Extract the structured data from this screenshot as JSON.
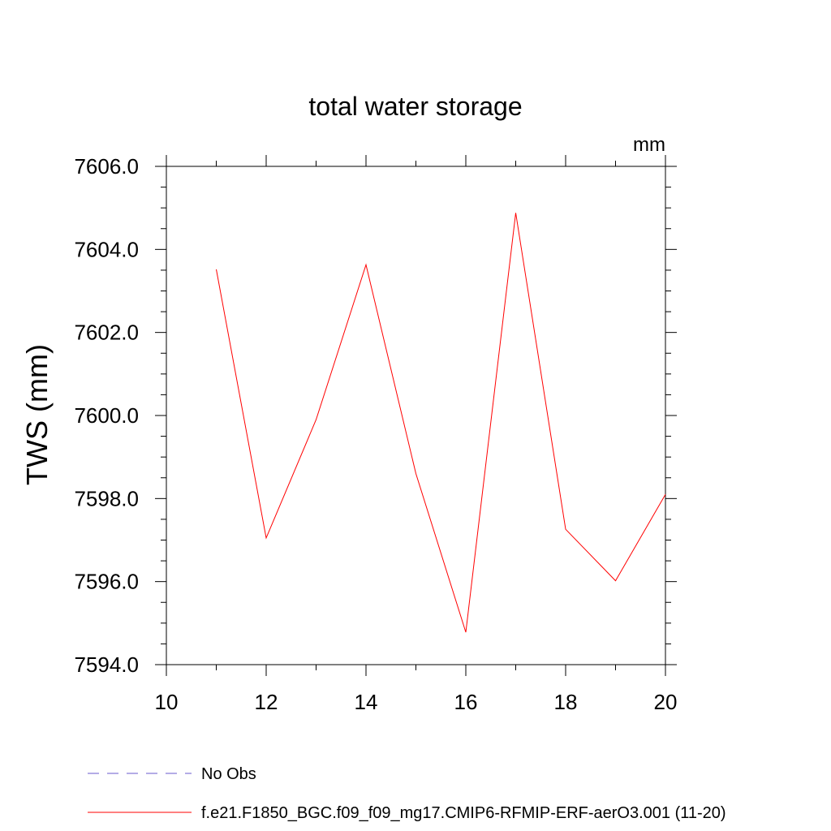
{
  "chart_data": {
    "type": "line",
    "title": "total water storage",
    "units_label": "mm",
    "xlabel": "",
    "ylabel": "TWS  (mm)",
    "xlim": [
      10,
      20
    ],
    "ylim": [
      7594.0,
      7606.0
    ],
    "x_ticks": [
      10,
      12,
      14,
      16,
      18,
      20
    ],
    "x_tick_labels": [
      "10",
      "12",
      "14",
      "16",
      "18",
      "20"
    ],
    "x_minor_ticks": [
      11,
      13,
      15,
      17,
      19
    ],
    "y_ticks": [
      7594.0,
      7596.0,
      7598.0,
      7600.0,
      7602.0,
      7604.0,
      7606.0
    ],
    "y_tick_labels": [
      "7594.0",
      "7596.0",
      "7598.0",
      "7600.0",
      "7602.0",
      "7604.0",
      "7606.0"
    ],
    "y_minor_step": 0.5,
    "grid": false,
    "series": [
      {
        "name": "f.e21.F1850_BGC.f09_f09_mg17.CMIP6-RFMIP-ERF-aerO3.001 (11-20)",
        "color": "#ff0000",
        "style": "solid",
        "x": [
          11,
          12,
          13,
          14,
          15,
          16,
          17,
          18,
          19,
          20
        ],
        "values": [
          7603.52,
          7597.05,
          7599.9,
          7603.63,
          7598.6,
          7594.78,
          7604.88,
          7597.26,
          7596.02,
          7598.1
        ]
      }
    ],
    "legend": [
      {
        "label": "No Obs",
        "color": "#6a5acd",
        "style": "dashed"
      },
      {
        "label": "f.e21.F1850_BGC.f09_f09_mg17.CMIP6-RFMIP-ERF-aerO3.001 (11-20)",
        "color": "#ff0000",
        "style": "solid"
      }
    ],
    "legend_position": "bottom"
  }
}
